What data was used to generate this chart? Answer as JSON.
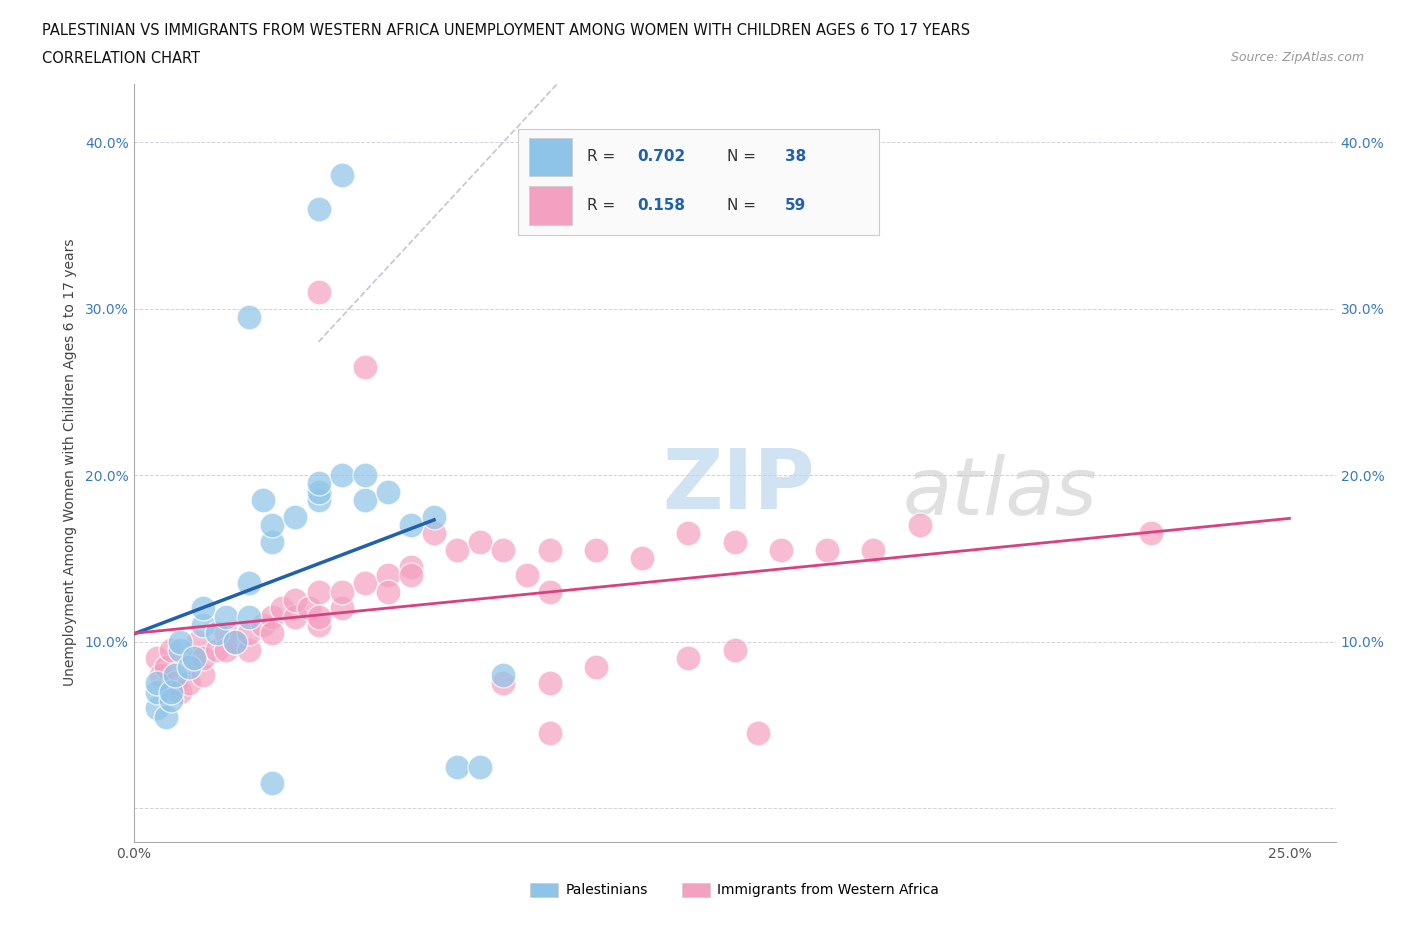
{
  "title_line1": "PALESTINIAN VS IMMIGRANTS FROM WESTERN AFRICA UNEMPLOYMENT AMONG WOMEN WITH CHILDREN AGES 6 TO 17 YEARS",
  "title_line2": "CORRELATION CHART",
  "source": "Source: ZipAtlas.com",
  "ylabel": "Unemployment Among Women with Children Ages 6 to 17 years",
  "xlim": [
    0.0,
    0.26
  ],
  "ylim": [
    -0.02,
    0.435
  ],
  "xticks": [
    0.0,
    0.05,
    0.1,
    0.15,
    0.2,
    0.25
  ],
  "yticks": [
    0.0,
    0.1,
    0.2,
    0.3,
    0.4
  ],
  "legend_R_blue": "0.702",
  "legend_N_blue": "38",
  "legend_R_pink": "0.158",
  "legend_N_pink": "59",
  "blue_color": "#8ec4e8",
  "pink_color": "#f4a0c0",
  "blue_line_color": "#2060b0",
  "pink_line_color": "#d94080",
  "blue_scatter": [
    [
      0.005,
      0.06
    ],
    [
      0.005,
      0.07
    ],
    [
      0.005,
      0.075
    ],
    [
      0.007,
      0.055
    ],
    [
      0.008,
      0.065
    ],
    [
      0.008,
      0.07
    ],
    [
      0.009,
      0.08
    ],
    [
      0.01,
      0.095
    ],
    [
      0.01,
      0.1
    ],
    [
      0.012,
      0.085
    ],
    [
      0.013,
      0.09
    ],
    [
      0.015,
      0.11
    ],
    [
      0.015,
      0.12
    ],
    [
      0.018,
      0.105
    ],
    [
      0.02,
      0.115
    ],
    [
      0.022,
      0.1
    ],
    [
      0.025,
      0.115
    ],
    [
      0.025,
      0.135
    ],
    [
      0.028,
      0.185
    ],
    [
      0.03,
      0.16
    ],
    [
      0.03,
      0.17
    ],
    [
      0.03,
      0.015
    ],
    [
      0.035,
      0.175
    ],
    [
      0.04,
      0.185
    ],
    [
      0.04,
      0.19
    ],
    [
      0.04,
      0.195
    ],
    [
      0.045,
      0.2
    ],
    [
      0.05,
      0.185
    ],
    [
      0.05,
      0.2
    ],
    [
      0.055,
      0.19
    ],
    [
      0.06,
      0.17
    ],
    [
      0.065,
      0.175
    ],
    [
      0.07,
      0.025
    ],
    [
      0.075,
      0.025
    ],
    [
      0.04,
      0.36
    ],
    [
      0.045,
      0.38
    ],
    [
      0.08,
      0.08
    ],
    [
      0.025,
      0.295
    ]
  ],
  "pink_scatter": [
    [
      0.005,
      0.09
    ],
    [
      0.006,
      0.08
    ],
    [
      0.007,
      0.085
    ],
    [
      0.008,
      0.095
    ],
    [
      0.009,
      0.075
    ],
    [
      0.01,
      0.07
    ],
    [
      0.012,
      0.075
    ],
    [
      0.013,
      0.09
    ],
    [
      0.014,
      0.1
    ],
    [
      0.015,
      0.08
    ],
    [
      0.015,
      0.09
    ],
    [
      0.018,
      0.095
    ],
    [
      0.02,
      0.105
    ],
    [
      0.02,
      0.095
    ],
    [
      0.022,
      0.1
    ],
    [
      0.025,
      0.095
    ],
    [
      0.025,
      0.105
    ],
    [
      0.028,
      0.11
    ],
    [
      0.03,
      0.115
    ],
    [
      0.03,
      0.105
    ],
    [
      0.032,
      0.12
    ],
    [
      0.035,
      0.115
    ],
    [
      0.035,
      0.125
    ],
    [
      0.038,
      0.12
    ],
    [
      0.04,
      0.13
    ],
    [
      0.04,
      0.11
    ],
    [
      0.04,
      0.115
    ],
    [
      0.045,
      0.12
    ],
    [
      0.045,
      0.13
    ],
    [
      0.05,
      0.135
    ],
    [
      0.055,
      0.14
    ],
    [
      0.055,
      0.13
    ],
    [
      0.06,
      0.145
    ],
    [
      0.06,
      0.14
    ],
    [
      0.065,
      0.165
    ],
    [
      0.07,
      0.155
    ],
    [
      0.075,
      0.16
    ],
    [
      0.08,
      0.155
    ],
    [
      0.085,
      0.14
    ],
    [
      0.09,
      0.155
    ],
    [
      0.09,
      0.13
    ],
    [
      0.1,
      0.155
    ],
    [
      0.11,
      0.15
    ],
    [
      0.12,
      0.165
    ],
    [
      0.13,
      0.16
    ],
    [
      0.14,
      0.155
    ],
    [
      0.15,
      0.155
    ],
    [
      0.16,
      0.155
    ],
    [
      0.17,
      0.17
    ],
    [
      0.22,
      0.165
    ],
    [
      0.04,
      0.31
    ],
    [
      0.05,
      0.265
    ],
    [
      0.08,
      0.075
    ],
    [
      0.09,
      0.075
    ],
    [
      0.1,
      0.085
    ],
    [
      0.12,
      0.09
    ],
    [
      0.13,
      0.095
    ],
    [
      0.09,
      0.045
    ],
    [
      0.135,
      0.045
    ]
  ],
  "background_color": "#ffffff",
  "plot_bg_color": "#ffffff",
  "grid_color": "#c8c8d0"
}
